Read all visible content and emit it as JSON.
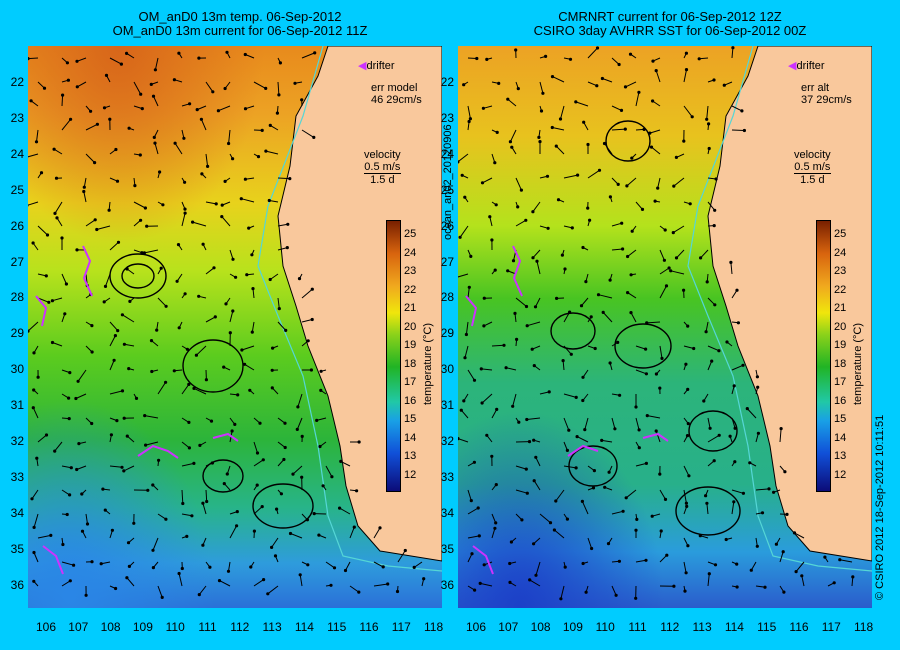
{
  "left_panel": {
    "title_line1": "OM_anD0 13m temp. 06-Sep-2012",
    "title_line2": "OM_anD0 13m current for 06-Sep-2012 11Z",
    "drifter_label": "drifter",
    "err_label": "err model",
    "err_value": "46 29cm/s",
    "velocity_label": "velocity",
    "velocity_scale": "0.5 m/s",
    "velocity_days": "1.5 d"
  },
  "right_panel": {
    "title_line1": "CMRNRT current for 06-Sep-2012 12Z",
    "title_line2": "CSIRO 3day AVHRR SST for 06-Sep-2012 00Z",
    "drifter_label": "drifter",
    "err_label": "err alt",
    "err_value": "37 29cm/s",
    "velocity_label": "velocity",
    "velocity_scale": "0.5 m/s",
    "velocity_days": "1.5 d"
  },
  "axes": {
    "lat_ticks": [
      "22",
      "23",
      "24",
      "25",
      "26",
      "27",
      "28",
      "29",
      "30",
      "31",
      "32",
      "33",
      "34",
      "35",
      "36"
    ],
    "lon_ticks": [
      "106",
      "107",
      "108",
      "109",
      "110",
      "111",
      "112",
      "113",
      "114",
      "115",
      "116",
      "117",
      "118"
    ]
  },
  "colorbar": {
    "label": "temperature (°C)",
    "ticks": [
      "25",
      "24",
      "23",
      "22",
      "21",
      "20",
      "19",
      "18",
      "17",
      "16",
      "15",
      "14",
      "13",
      "12"
    ]
  },
  "side_text": {
    "middle": "ocean_an02_20120906",
    "right": "© CSIRO 2012   18-Sep-2012 10:11:51"
  },
  "colors": {
    "background": "#00ccff",
    "land": "#f9c89c",
    "drifter": "#cc33ff",
    "shelf_contour": "#55d6d6"
  }
}
